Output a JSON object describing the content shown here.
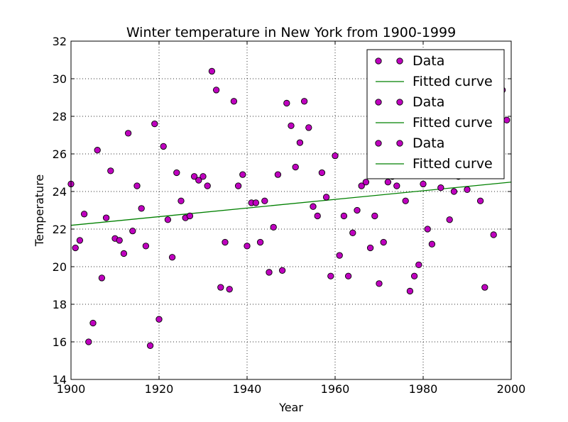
{
  "chart_data": {
    "type": "scatter",
    "title": "Winter temperature in New York from 1900-1999",
    "xlabel": "Year",
    "ylabel": "Temperature",
    "xlim": [
      1900,
      2000
    ],
    "ylim": [
      14,
      32
    ],
    "xticks": [
      1900,
      1920,
      1940,
      1960,
      1980,
      2000
    ],
    "yticks": [
      14,
      16,
      18,
      20,
      22,
      24,
      26,
      28,
      30,
      32
    ],
    "grid": true,
    "legend_position": "top-right",
    "colors": {
      "data": "#bf00bf",
      "fit": "#008000",
      "axes": "#000000"
    },
    "legend": [
      "Data",
      "Fitted curve",
      "Data",
      "Fitted curve",
      "Data",
      "Fitted curve"
    ],
    "fit_line": {
      "x": [
        1900,
        2000
      ],
      "y": [
        22.2,
        24.5
      ]
    },
    "series": [
      {
        "name": "Data",
        "points": [
          [
            1900,
            24.4
          ],
          [
            1901,
            21.0
          ],
          [
            1902,
            21.4
          ],
          [
            1903,
            22.8
          ],
          [
            1904,
            16.0
          ],
          [
            1905,
            17.0
          ],
          [
            1906,
            26.2
          ],
          [
            1907,
            19.4
          ],
          [
            1908,
            22.6
          ],
          [
            1909,
            25.1
          ],
          [
            1910,
            21.5
          ],
          [
            1911,
            21.4
          ],
          [
            1912,
            20.7
          ],
          [
            1913,
            27.1
          ],
          [
            1914,
            21.9
          ],
          [
            1915,
            24.3
          ],
          [
            1916,
            23.1
          ],
          [
            1917,
            21.1
          ],
          [
            1918,
            15.8
          ],
          [
            1919,
            27.6
          ],
          [
            1920,
            17.2
          ],
          [
            1921,
            26.4
          ],
          [
            1922,
            22.5
          ],
          [
            1923,
            20.5
          ],
          [
            1924,
            25.0
          ],
          [
            1925,
            23.5
          ],
          [
            1926,
            22.6
          ],
          [
            1927,
            22.7
          ],
          [
            1928,
            24.8
          ],
          [
            1929,
            24.6
          ],
          [
            1930,
            24.8
          ],
          [
            1931,
            24.3
          ],
          [
            1932,
            30.4
          ],
          [
            1933,
            29.4
          ],
          [
            1934,
            18.9
          ],
          [
            1935,
            21.3
          ],
          [
            1936,
            18.8
          ],
          [
            1937,
            28.8
          ],
          [
            1938,
            24.3
          ],
          [
            1939,
            24.9
          ],
          [
            1940,
            21.1
          ],
          [
            1941,
            23.4
          ],
          [
            1942,
            23.4
          ],
          [
            1943,
            21.3
          ],
          [
            1944,
            23.5
          ],
          [
            1945,
            19.7
          ],
          [
            1946,
            22.1
          ],
          [
            1947,
            24.9
          ],
          [
            1948,
            19.8
          ],
          [
            1949,
            28.7
          ],
          [
            1950,
            27.5
          ],
          [
            1951,
            25.3
          ],
          [
            1952,
            26.6
          ],
          [
            1953,
            28.8
          ],
          [
            1954,
            27.4
          ],
          [
            1955,
            23.2
          ],
          [
            1956,
            22.7
          ],
          [
            1957,
            25.0
          ],
          [
            1958,
            23.7
          ],
          [
            1959,
            19.5
          ],
          [
            1960,
            25.9
          ],
          [
            1961,
            20.6
          ],
          [
            1962,
            22.7
          ],
          [
            1963,
            19.5
          ],
          [
            1964,
            21.8
          ],
          [
            1965,
            23.0
          ],
          [
            1966,
            24.3
          ],
          [
            1967,
            24.5
          ],
          [
            1968,
            21.0
          ],
          [
            1969,
            22.7
          ],
          [
            1970,
            19.1
          ],
          [
            1971,
            21.3
          ],
          [
            1972,
            24.5
          ],
          [
            1973,
            24.8
          ],
          [
            1974,
            24.3
          ],
          [
            1976,
            23.5
          ],
          [
            1977,
            18.7
          ],
          [
            1978,
            19.5
          ],
          [
            1979,
            20.1
          ],
          [
            1980,
            24.4
          ],
          [
            1981,
            22.0
          ],
          [
            1982,
            21.2
          ],
          [
            1984,
            24.2
          ],
          [
            1986,
            22.5
          ],
          [
            1987,
            24.0
          ],
          [
            1988,
            24.8
          ],
          [
            1990,
            24.1
          ],
          [
            1993,
            23.5
          ],
          [
            1994,
            18.9
          ],
          [
            1996,
            21.7
          ],
          [
            1998,
            29.4
          ],
          [
            1999,
            27.8
          ]
        ]
      }
    ]
  }
}
